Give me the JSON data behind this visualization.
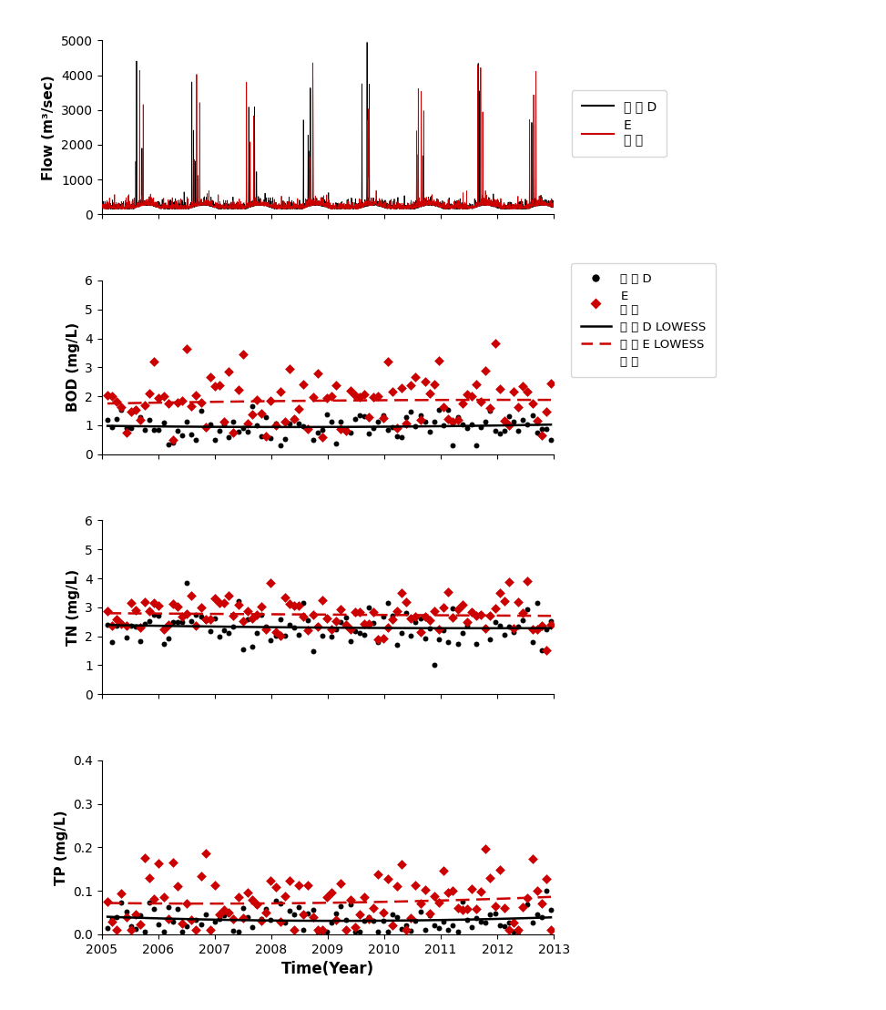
{
  "xlabel": "Time(Year)",
  "flow_ylabel": "Flow (m³/sec)",
  "bod_ylabel": "BOD (mg/L)",
  "tn_ylabel": "TN (mg/L)",
  "tp_ylabel": "TP (mg/L)",
  "xmin": 2005.0,
  "xmax": 2013.0,
  "flow_ylim": [
    0,
    5000
  ],
  "bod_ylim": [
    0,
    6
  ],
  "tn_ylim": [
    0,
    6
  ],
  "tp_ylim": [
    0,
    0.4
  ],
  "flow_yticks": [
    0,
    1000,
    2000,
    3000,
    4000,
    5000
  ],
  "bod_yticks": [
    0,
    1,
    2,
    3,
    4,
    5,
    6
  ],
  "tn_yticks": [
    0,
    1,
    2,
    3,
    4,
    5,
    6
  ],
  "tp_yticks": [
    0.0,
    0.1,
    0.2,
    0.3,
    0.4
  ],
  "xticks": [
    2005,
    2006,
    2007,
    2008,
    2009,
    2010,
    2011,
    2012,
    2013
  ],
  "color_D": "#000000",
  "color_E": "#cc0000",
  "leg1_label1": "한 강 D",
  "leg1_label2": "E",
  "leg1_label3": "화 유",
  "leg2_label1": "한 강 D",
  "leg2_label2": "E",
  "leg2_label3": "화 유 D LOWESS",
  "leg2_label4": "화 유 E LOWESS",
  "leg2_label5": "화 유",
  "seed": 42
}
